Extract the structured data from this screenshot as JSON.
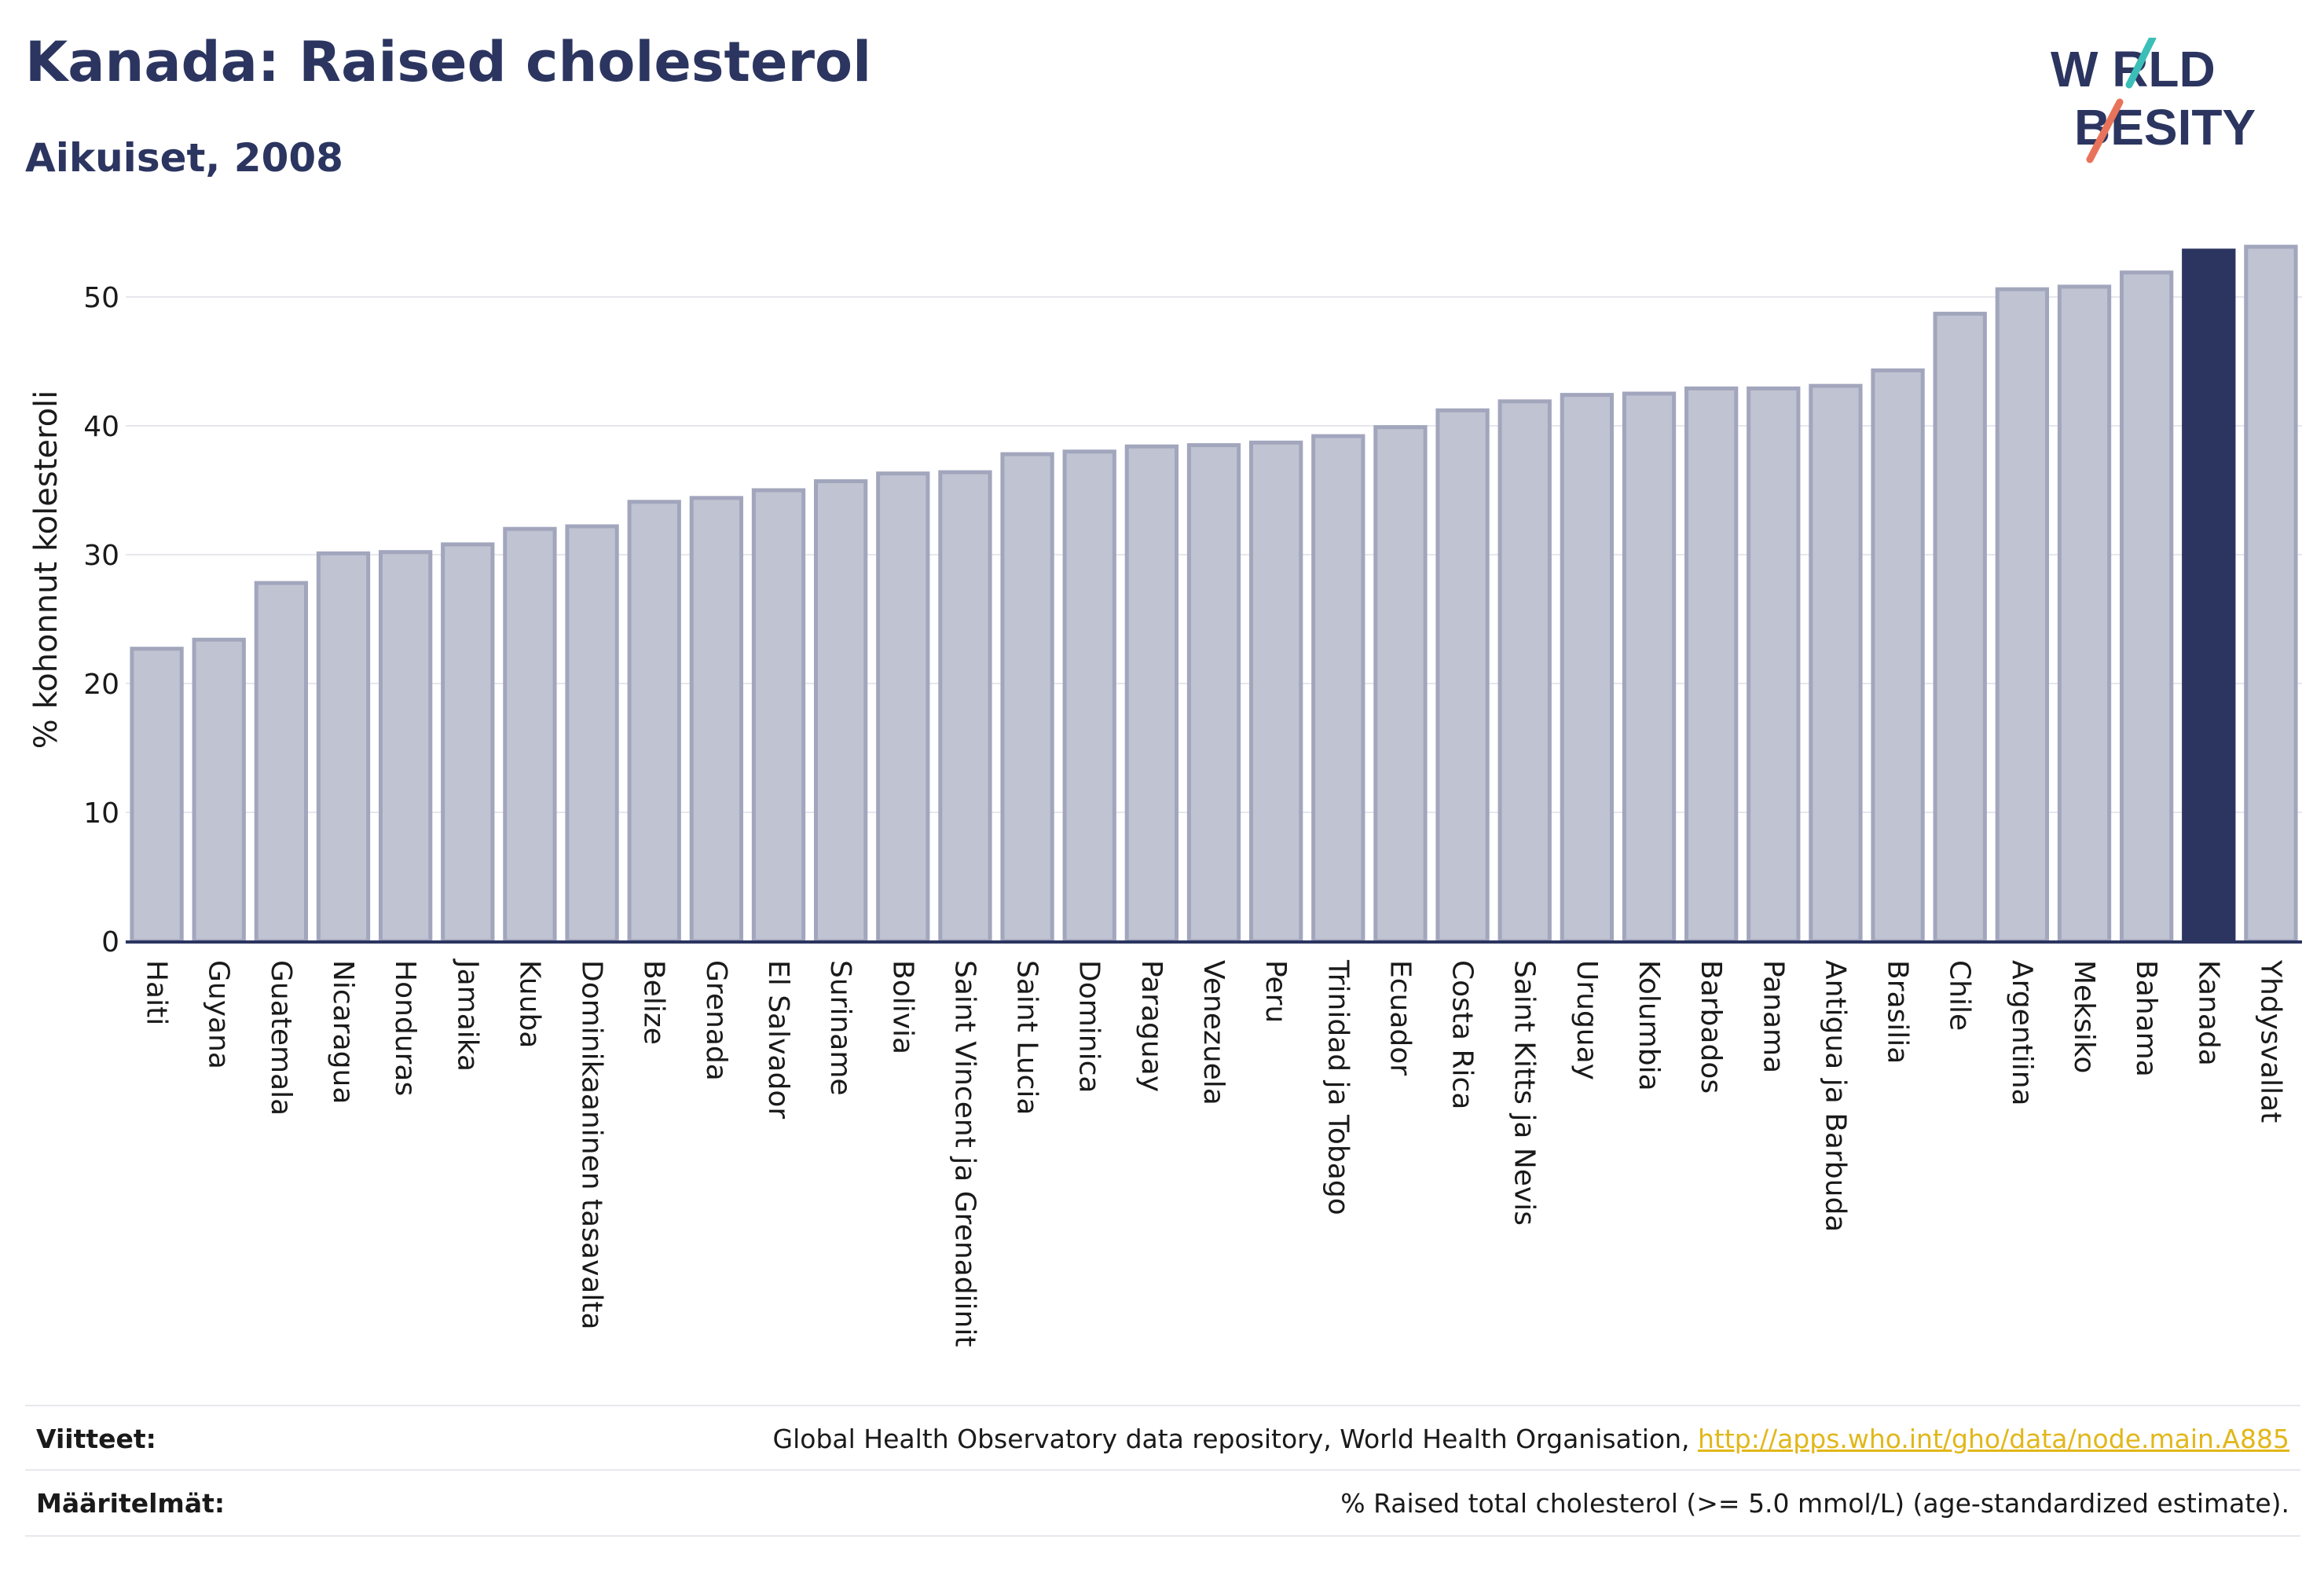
{
  "header": {
    "title": "Kanada: Raised cholesterol",
    "subtitle": "Aikuiset, 2008"
  },
  "logo": {
    "line1": "W RLD",
    "line2": "BESITY",
    "colors": {
      "text": "#2b3560",
      "slash_top": "#3bbfb8",
      "slash_bottom": "#e8735a"
    }
  },
  "chart_data": {
    "type": "bar",
    "title": "Kanada: Raised cholesterol",
    "subtitle": "Aikuiset, 2008",
    "xlabel": "",
    "ylabel": "% kohonnut kolesteroli",
    "ylim": [
      0,
      55
    ],
    "yticks": [
      0,
      10,
      20,
      30,
      40,
      50
    ],
    "grid": true,
    "highlight": "Kanada",
    "colors": {
      "bar": "#c0c3d1",
      "bar_edge": "#a2a6bd",
      "highlight": "#2b3560",
      "grid": "#e6e7ee",
      "axis": "#2b3560"
    },
    "categories": [
      "Haiti",
      "Guyana",
      "Guatemala",
      "Nicaragua",
      "Honduras",
      "Jamaika",
      "Kuuba",
      "Dominikaaninen tasavalta",
      "Belize",
      "Grenada",
      "El Salvador",
      "Suriname",
      "Bolivia",
      "Saint Vincent ja Grenadiinit",
      "Saint Lucia",
      "Dominica",
      "Paraguay",
      "Venezuela",
      "Peru",
      "Trinidad ja Tobago",
      "Ecuador",
      "Costa Rica",
      "Saint Kitts ja Nevis",
      "Uruguay",
      "Kolumbia",
      "Barbados",
      "Panama",
      "Antigua ja Barbuda",
      "Brasilia",
      "Chile",
      "Argentiina",
      "Meksiko",
      "Bahama",
      "Kanada",
      "Yhdysvallat"
    ],
    "values": [
      22.7,
      23.4,
      27.8,
      30.1,
      30.2,
      30.8,
      32.0,
      32.2,
      34.1,
      34.4,
      35.0,
      35.7,
      36.3,
      36.4,
      37.8,
      38.0,
      38.4,
      38.5,
      38.7,
      39.2,
      39.9,
      41.2,
      41.9,
      42.4,
      42.5,
      42.9,
      42.9,
      43.1,
      44.3,
      48.7,
      50.6,
      50.8,
      51.9,
      53.6,
      53.9
    ]
  },
  "footer": {
    "sources_label": "Viitteet:",
    "sources_text": "Global Health Observatory data repository, World Health Organisation, ",
    "sources_link": "http://apps.who.int/gho/data/node.main.A885",
    "definitions_label": "Määritelmät:",
    "definitions_text": "% Raised total cholesterol (>= 5.0 mmol/L) (age-standardized estimate)."
  }
}
